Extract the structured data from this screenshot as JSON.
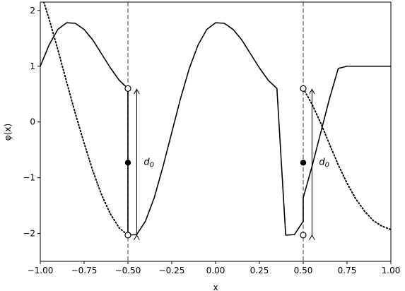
{
  "chart_data": {
    "type": "line",
    "xlabel": "x",
    "ylabel": "φ(x)",
    "xlim": [
      -1.0,
      1.0
    ],
    "ylim": [
      -2.5,
      2.15
    ],
    "xticks": [
      {
        "v": -1.0,
        "label": "−1.00"
      },
      {
        "v": -0.75,
        "label": "−0.75"
      },
      {
        "v": -0.5,
        "label": "−0.50"
      },
      {
        "v": -0.25,
        "label": "−0.25"
      },
      {
        "v": 0.0,
        "label": "0.00"
      },
      {
        "v": 0.25,
        "label": "0.25"
      },
      {
        "v": 0.5,
        "label": "0.50"
      },
      {
        "v": 0.75,
        "label": "0.75"
      },
      {
        "v": 1.0,
        "label": "1.00"
      }
    ],
    "yticks": [
      {
        "v": -2,
        "label": "−2"
      },
      {
        "v": -1,
        "label": "−1"
      },
      {
        "v": 0,
        "label": "0"
      },
      {
        "v": 1,
        "label": "1"
      },
      {
        "v": 2,
        "label": "2"
      }
    ],
    "grid": false,
    "series": [
      {
        "style": "solid",
        "x": [
          -1.0,
          -0.95,
          -0.9,
          -0.85,
          -0.8,
          -0.75,
          -0.7,
          -0.65,
          -0.6,
          -0.55,
          -0.5,
          -0.5,
          -0.45,
          -0.4,
          -0.35,
          -0.3,
          -0.25,
          -0.2,
          -0.15,
          -0.1,
          -0.05,
          0.0,
          0.05,
          0.1,
          0.15,
          0.2,
          0.25,
          0.3,
          0.35,
          0.4,
          0.45,
          0.5,
          0.5,
          0.55,
          0.6,
          0.65,
          0.7,
          0.75,
          0.8,
          0.85,
          0.9,
          0.95,
          1.0
        ],
        "y": [
          1.0,
          1.38,
          1.66,
          1.78,
          1.77,
          1.66,
          1.47,
          1.22,
          0.97,
          0.75,
          0.6,
          -2.03,
          -2.02,
          -1.78,
          -1.36,
          -0.8,
          -0.19,
          0.42,
          0.96,
          1.38,
          1.66,
          1.78,
          1.77,
          1.66,
          1.47,
          1.22,
          0.97,
          0.75,
          0.6,
          -2.03,
          -2.02,
          -1.78,
          -1.36,
          -0.8,
          -0.19,
          0.42,
          0.96,
          1.0,
          1.0,
          1.0,
          1.0,
          1.0,
          1.0
        ]
      },
      {
        "style": "dotted",
        "x": [
          -0.98,
          -0.95,
          -0.9,
          -0.85,
          -0.8,
          -0.75,
          -0.7,
          -0.65,
          -0.6,
          -0.55,
          -0.5
        ],
        "y": [
          2.15,
          1.85,
          1.3,
          0.72,
          0.15,
          -0.38,
          -0.88,
          -1.31,
          -1.65,
          -1.9,
          -2.03
        ]
      },
      {
        "style": "dotted",
        "x": [
          0.5,
          0.55,
          0.6,
          0.65,
          0.7,
          0.75,
          0.8,
          0.85,
          0.9,
          0.95,
          1.0
        ],
        "y": [
          0.6,
          0.32,
          -0.02,
          -0.4,
          -0.77,
          -1.1,
          -1.38,
          -1.6,
          -1.77,
          -1.87,
          -1.93
        ]
      }
    ],
    "vlines": [
      -0.5,
      0.5
    ],
    "markers": {
      "open": [
        {
          "x": -0.5,
          "y": 0.6
        },
        {
          "x": -0.5,
          "y": -2.03
        },
        {
          "x": 0.5,
          "y": 0.6
        },
        {
          "x": 0.5,
          "y": -2.03
        }
      ],
      "filled": [
        {
          "x": -0.5,
          "y": -0.73
        },
        {
          "x": 0.5,
          "y": -0.73
        }
      ]
    },
    "arrows": [
      {
        "x": -0.45,
        "y1": -2.03,
        "y2": 0.6
      },
      {
        "x": 0.55,
        "y1": -2.03,
        "y2": 0.6
      }
    ],
    "annotations": [
      {
        "x": -0.41,
        "y": -0.72,
        "label": "d",
        "sub": "0"
      },
      {
        "x": 0.59,
        "y": -0.72,
        "label": "d",
        "sub": "0"
      }
    ]
  }
}
